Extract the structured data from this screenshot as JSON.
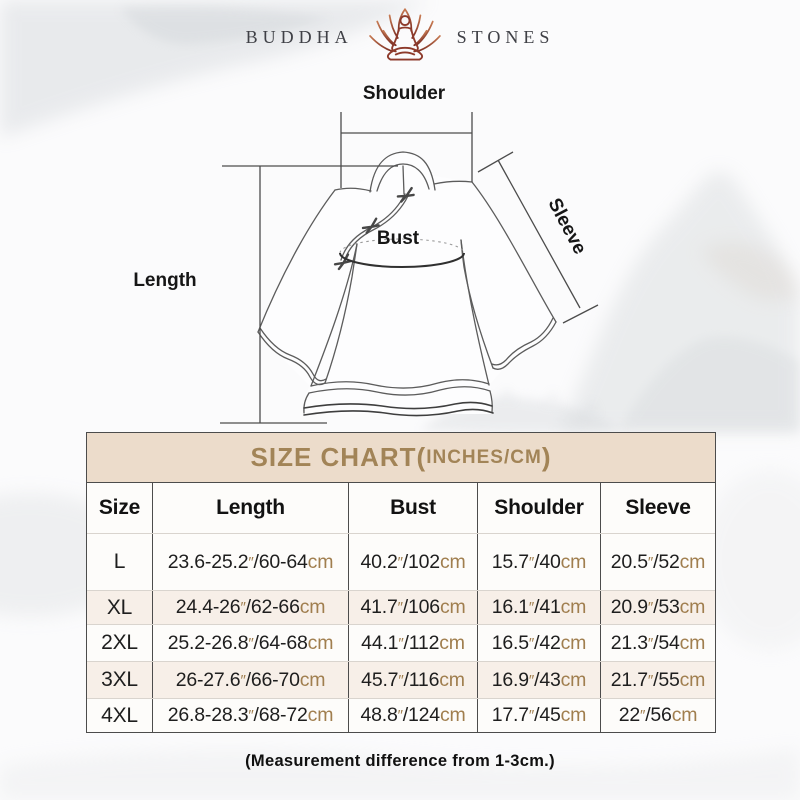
{
  "brand": {
    "word1": "BUDDHA",
    "word2": "STONES",
    "icon": "lotus-meditation"
  },
  "diagram_labels": {
    "shoulder": "Shoulder",
    "bust": "Bust",
    "length": "Length",
    "sleeve": "Sleeve"
  },
  "size_chart": {
    "title_main": "SIZE CHART",
    "title_open": "(",
    "title_unit": "INCHES/CM",
    "title_close": ")",
    "columns": [
      "Size",
      "Length",
      "Bust",
      "Shoulder",
      "Sleeve"
    ],
    "unit_inch_mark": "″",
    "unit_cm": "cm",
    "separator": "/",
    "rows": [
      {
        "size": "L",
        "length": {
          "in": "23.6-25.2",
          "cm": "60-64"
        },
        "bust": {
          "in": "40.2",
          "cm": "102"
        },
        "shoulder": {
          "in": "15.7",
          "cm": "40"
        },
        "sleeve": {
          "in": "20.5",
          "cm": "52"
        }
      },
      {
        "size": "XL",
        "length": {
          "in": "24.4-26",
          "cm": "62-66"
        },
        "bust": {
          "in": "41.7",
          "cm": "106"
        },
        "shoulder": {
          "in": "16.1",
          "cm": "41"
        },
        "sleeve": {
          "in": "20.9",
          "cm": "53"
        }
      },
      {
        "size": "2XL",
        "length": {
          "in": "25.2-26.8",
          "cm": "64-68"
        },
        "bust": {
          "in": "44.1",
          "cm": "112"
        },
        "shoulder": {
          "in": "16.5",
          "cm": "42"
        },
        "sleeve": {
          "in": "21.3",
          "cm": "54"
        }
      },
      {
        "size": "3XL",
        "length": {
          "in": "26-27.6",
          "cm": "66-70"
        },
        "bust": {
          "in": "45.7",
          "cm": "116"
        },
        "shoulder": {
          "in": "16.9",
          "cm": "43"
        },
        "sleeve": {
          "in": "21.7",
          "cm": "55"
        }
      },
      {
        "size": "4XL",
        "length": {
          "in": "26.8-28.3",
          "cm": "68-72"
        },
        "bust": {
          "in": "48.8",
          "cm": "124"
        },
        "shoulder": {
          "in": "17.7",
          "cm": "45"
        },
        "sleeve": {
          "in": "22",
          "cm": "56"
        }
      }
    ]
  },
  "footer": {
    "note": "(Measurement difference from 1-3cm.)"
  },
  "colors": {
    "title_bg": "#ecdccb",
    "title_text": "#a28457",
    "unit_text": "#a07e4e",
    "value_text": "#1e1e1e",
    "table_border": "#4c4c4c",
    "row_stripe": "#f7efe8",
    "logo_text": "#3f4046",
    "logo_icon_dark": "#8d3a2b",
    "logo_icon_light": "#c77a52"
  }
}
